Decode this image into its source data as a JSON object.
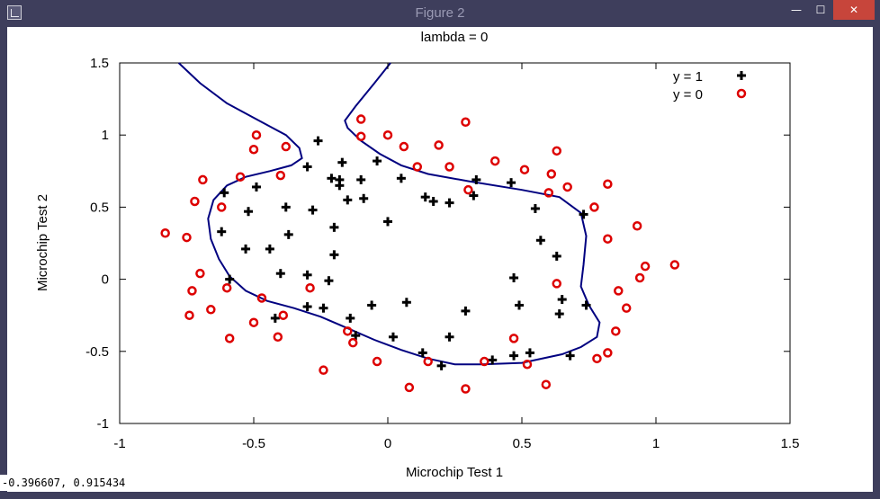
{
  "window": {
    "title": "Figure 2",
    "icon": "figure-icon",
    "buttons": {
      "minimize": "—",
      "maximize": "☐",
      "close": "✕"
    }
  },
  "status_bar": {
    "coordinates": "-0.396607,  0.915434"
  },
  "colors": {
    "frame": "#3e3e5c",
    "close": "#c7453b",
    "boundary": "#000080",
    "positive": "#000000",
    "negative": "#dd0000"
  },
  "chart_data": {
    "type": "scatter",
    "title": "lambda = 0",
    "xlabel": "Microchip Test 1",
    "ylabel": "Microchip Test 2",
    "xlim": [
      -1,
      1.5
    ],
    "ylim": [
      -1,
      1.5
    ],
    "x_ticks": [
      "-1",
      "-0.5",
      "0",
      "0.5",
      "1",
      "1.5"
    ],
    "y_ticks": [
      "-1",
      "-0.5",
      "0",
      "0.5",
      "1",
      "1.5"
    ],
    "grid": false,
    "legend_position": "top-right",
    "series": [
      {
        "name": "y = 1",
        "marker": "plus",
        "color": "#000000",
        "points": [
          [
            -0.26,
            0.96
          ],
          [
            -0.3,
            0.78
          ],
          [
            -0.17,
            0.81
          ],
          [
            -0.04,
            0.82
          ],
          [
            -0.21,
            0.7
          ],
          [
            -0.18,
            0.69
          ],
          [
            -0.1,
            0.69
          ],
          [
            -0.18,
            0.65
          ],
          [
            0.05,
            0.7
          ],
          [
            0.33,
            0.69
          ],
          [
            0.46,
            0.67
          ],
          [
            -0.61,
            0.6
          ],
          [
            -0.49,
            0.64
          ],
          [
            -0.15,
            0.55
          ],
          [
            -0.09,
            0.56
          ],
          [
            0.14,
            0.57
          ],
          [
            0.17,
            0.54
          ],
          [
            0.23,
            0.53
          ],
          [
            0.32,
            0.58
          ],
          [
            -0.52,
            0.47
          ],
          [
            -0.38,
            0.5
          ],
          [
            -0.28,
            0.48
          ],
          [
            0.0,
            0.4
          ],
          [
            0.55,
            0.49
          ],
          [
            0.73,
            0.45
          ],
          [
            -0.62,
            0.33
          ],
          [
            -0.2,
            0.36
          ],
          [
            -0.37,
            0.31
          ],
          [
            0.57,
            0.27
          ],
          [
            -0.53,
            0.21
          ],
          [
            -0.44,
            0.21
          ],
          [
            -0.2,
            0.17
          ],
          [
            0.63,
            0.16
          ],
          [
            -0.59,
            0.0
          ],
          [
            -0.4,
            0.04
          ],
          [
            -0.3,
            0.03
          ],
          [
            -0.22,
            -0.01
          ],
          [
            0.47,
            0.01
          ],
          [
            -0.3,
            -0.19
          ],
          [
            -0.24,
            -0.2
          ],
          [
            -0.06,
            -0.18
          ],
          [
            0.07,
            -0.16
          ],
          [
            0.29,
            -0.22
          ],
          [
            0.49,
            -0.18
          ],
          [
            0.65,
            -0.14
          ],
          [
            0.74,
            -0.18
          ],
          [
            0.64,
            -0.24
          ],
          [
            -0.42,
            -0.27
          ],
          [
            -0.14,
            -0.27
          ],
          [
            -0.12,
            -0.39
          ],
          [
            0.02,
            -0.4
          ],
          [
            0.23,
            -0.4
          ],
          [
            0.13,
            -0.51
          ],
          [
            0.2,
            -0.6
          ],
          [
            0.39,
            -0.56
          ],
          [
            0.47,
            -0.53
          ],
          [
            0.53,
            -0.51
          ],
          [
            0.68,
            -0.53
          ]
        ]
      },
      {
        "name": "y = 0",
        "marker": "circle",
        "color": "#dd0000",
        "points": [
          [
            -0.49,
            1.0
          ],
          [
            -0.5,
            0.9
          ],
          [
            -0.38,
            0.92
          ],
          [
            -0.1,
            1.11
          ],
          [
            -0.1,
            0.99
          ],
          [
            0.0,
            1.0
          ],
          [
            0.06,
            0.92
          ],
          [
            0.19,
            0.93
          ],
          [
            0.29,
            1.09
          ],
          [
            0.63,
            0.89
          ],
          [
            -0.69,
            0.69
          ],
          [
            -0.55,
            0.71
          ],
          [
            -0.4,
            0.72
          ],
          [
            0.11,
            0.78
          ],
          [
            0.23,
            0.78
          ],
          [
            0.4,
            0.82
          ],
          [
            0.51,
            0.76
          ],
          [
            0.61,
            0.73
          ],
          [
            -0.72,
            0.54
          ],
          [
            -0.62,
            0.5
          ],
          [
            0.3,
            0.62
          ],
          [
            0.6,
            0.6
          ],
          [
            0.67,
            0.64
          ],
          [
            0.82,
            0.66
          ],
          [
            0.77,
            0.5
          ],
          [
            -0.83,
            0.32
          ],
          [
            -0.75,
            0.29
          ],
          [
            0.82,
            0.28
          ],
          [
            0.93,
            0.37
          ],
          [
            -0.7,
            0.04
          ],
          [
            -0.73,
            -0.08
          ],
          [
            -0.6,
            -0.06
          ],
          [
            -0.29,
            -0.06
          ],
          [
            0.63,
            -0.03
          ],
          [
            0.94,
            0.01
          ],
          [
            0.96,
            0.09
          ],
          [
            1.07,
            0.1
          ],
          [
            -0.47,
            -0.13
          ],
          [
            -0.66,
            -0.21
          ],
          [
            -0.74,
            -0.25
          ],
          [
            -0.39,
            -0.25
          ],
          [
            0.86,
            -0.08
          ],
          [
            0.89,
            -0.2
          ],
          [
            -0.5,
            -0.3
          ],
          [
            -0.59,
            -0.41
          ],
          [
            -0.41,
            -0.4
          ],
          [
            -0.15,
            -0.36
          ],
          [
            -0.13,
            -0.44
          ],
          [
            0.47,
            -0.41
          ],
          [
            0.85,
            -0.36
          ],
          [
            0.82,
            -0.51
          ],
          [
            0.78,
            -0.55
          ],
          [
            -0.04,
            -0.57
          ],
          [
            0.15,
            -0.57
          ],
          [
            0.36,
            -0.57
          ],
          [
            0.52,
            -0.59
          ],
          [
            -0.24,
            -0.63
          ],
          [
            0.08,
            -0.75
          ],
          [
            0.29,
            -0.76
          ],
          [
            0.59,
            -0.73
          ]
        ]
      }
    ],
    "decision_boundary": [
      {
        "color": "#000080",
        "points": [
          [
            -0.78,
            1.5
          ],
          [
            -0.7,
            1.36
          ],
          [
            -0.6,
            1.22
          ],
          [
            -0.5,
            1.12
          ],
          [
            -0.44,
            1.06
          ],
          [
            -0.38,
            1.0
          ],
          [
            -0.33,
            0.91
          ],
          [
            -0.32,
            0.84
          ],
          [
            -0.36,
            0.79
          ],
          [
            -0.44,
            0.75
          ],
          [
            -0.53,
            0.71
          ],
          [
            -0.6,
            0.65
          ],
          [
            -0.65,
            0.55
          ],
          [
            -0.67,
            0.42
          ],
          [
            -0.66,
            0.28
          ],
          [
            -0.63,
            0.14
          ],
          [
            -0.59,
            0.02
          ],
          [
            -0.53,
            -0.08
          ],
          [
            -0.45,
            -0.15
          ],
          [
            -0.35,
            -0.2
          ],
          [
            -0.25,
            -0.26
          ],
          [
            -0.15,
            -0.34
          ],
          [
            -0.05,
            -0.42
          ],
          [
            0.05,
            -0.49
          ],
          [
            0.15,
            -0.55
          ],
          [
            0.25,
            -0.59
          ],
          [
            0.35,
            -0.59
          ],
          [
            0.5,
            -0.58
          ],
          [
            0.65,
            -0.52
          ],
          [
            0.72,
            -0.47
          ],
          [
            0.78,
            -0.4
          ],
          [
            0.79,
            -0.3
          ],
          [
            0.75,
            -0.18
          ],
          [
            0.72,
            -0.05
          ],
          [
            0.73,
            0.1
          ],
          [
            0.74,
            0.3
          ],
          [
            0.72,
            0.46
          ],
          [
            0.64,
            0.57
          ],
          [
            0.5,
            0.62
          ],
          [
            0.3,
            0.68
          ],
          [
            0.15,
            0.73
          ],
          [
            0.05,
            0.79
          ],
          [
            -0.03,
            0.87
          ],
          [
            -0.1,
            0.96
          ],
          [
            -0.15,
            1.05
          ],
          [
            -0.16,
            1.1
          ],
          [
            -0.12,
            1.2
          ],
          [
            -0.05,
            1.36
          ],
          [
            0.01,
            1.5
          ]
        ]
      }
    ]
  }
}
